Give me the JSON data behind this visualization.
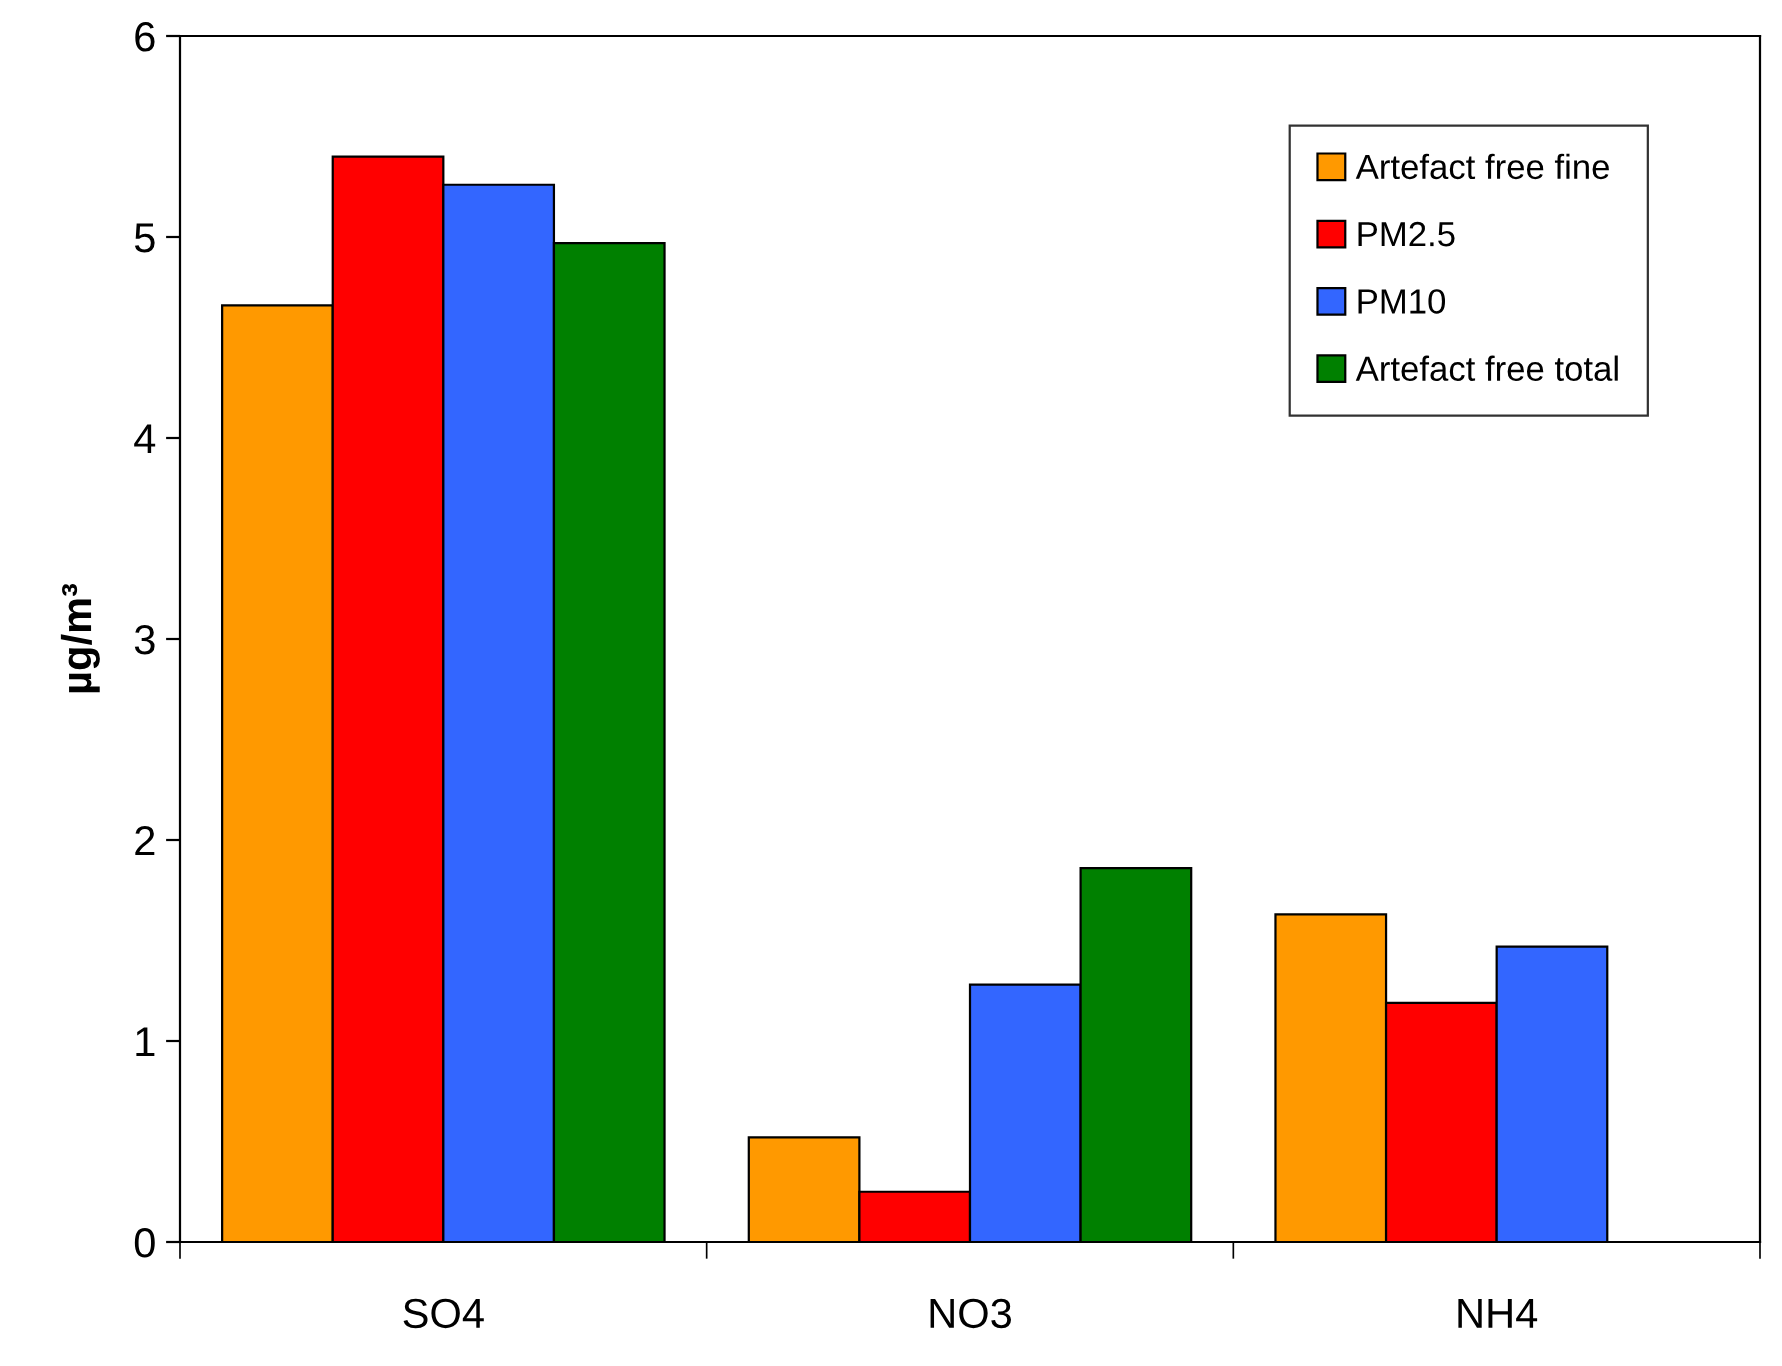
{
  "chart_data": {
    "type": "bar",
    "ylabel": "µg/m³",
    "categories": [
      "SO4",
      "NO3",
      "NH4"
    ],
    "series": [
      {
        "name": "Artefact free fine",
        "color": "#ff9900",
        "values": [
          4.66,
          0.52,
          1.63
        ]
      },
      {
        "name": "PM2.5",
        "color": "#ff0000",
        "values": [
          5.4,
          0.25,
          1.19
        ]
      },
      {
        "name": "PM10",
        "color": "#3366ff",
        "values": [
          5.26,
          1.28,
          1.47
        ]
      },
      {
        "name": "Artefact free total",
        "color": "#008000",
        "values": [
          4.97,
          1.86,
          null
        ]
      }
    ],
    "ylim": [
      0,
      6
    ],
    "yticks": [
      0,
      1,
      2,
      3,
      4,
      5,
      6
    ],
    "grid": false,
    "legend": "top right"
  }
}
